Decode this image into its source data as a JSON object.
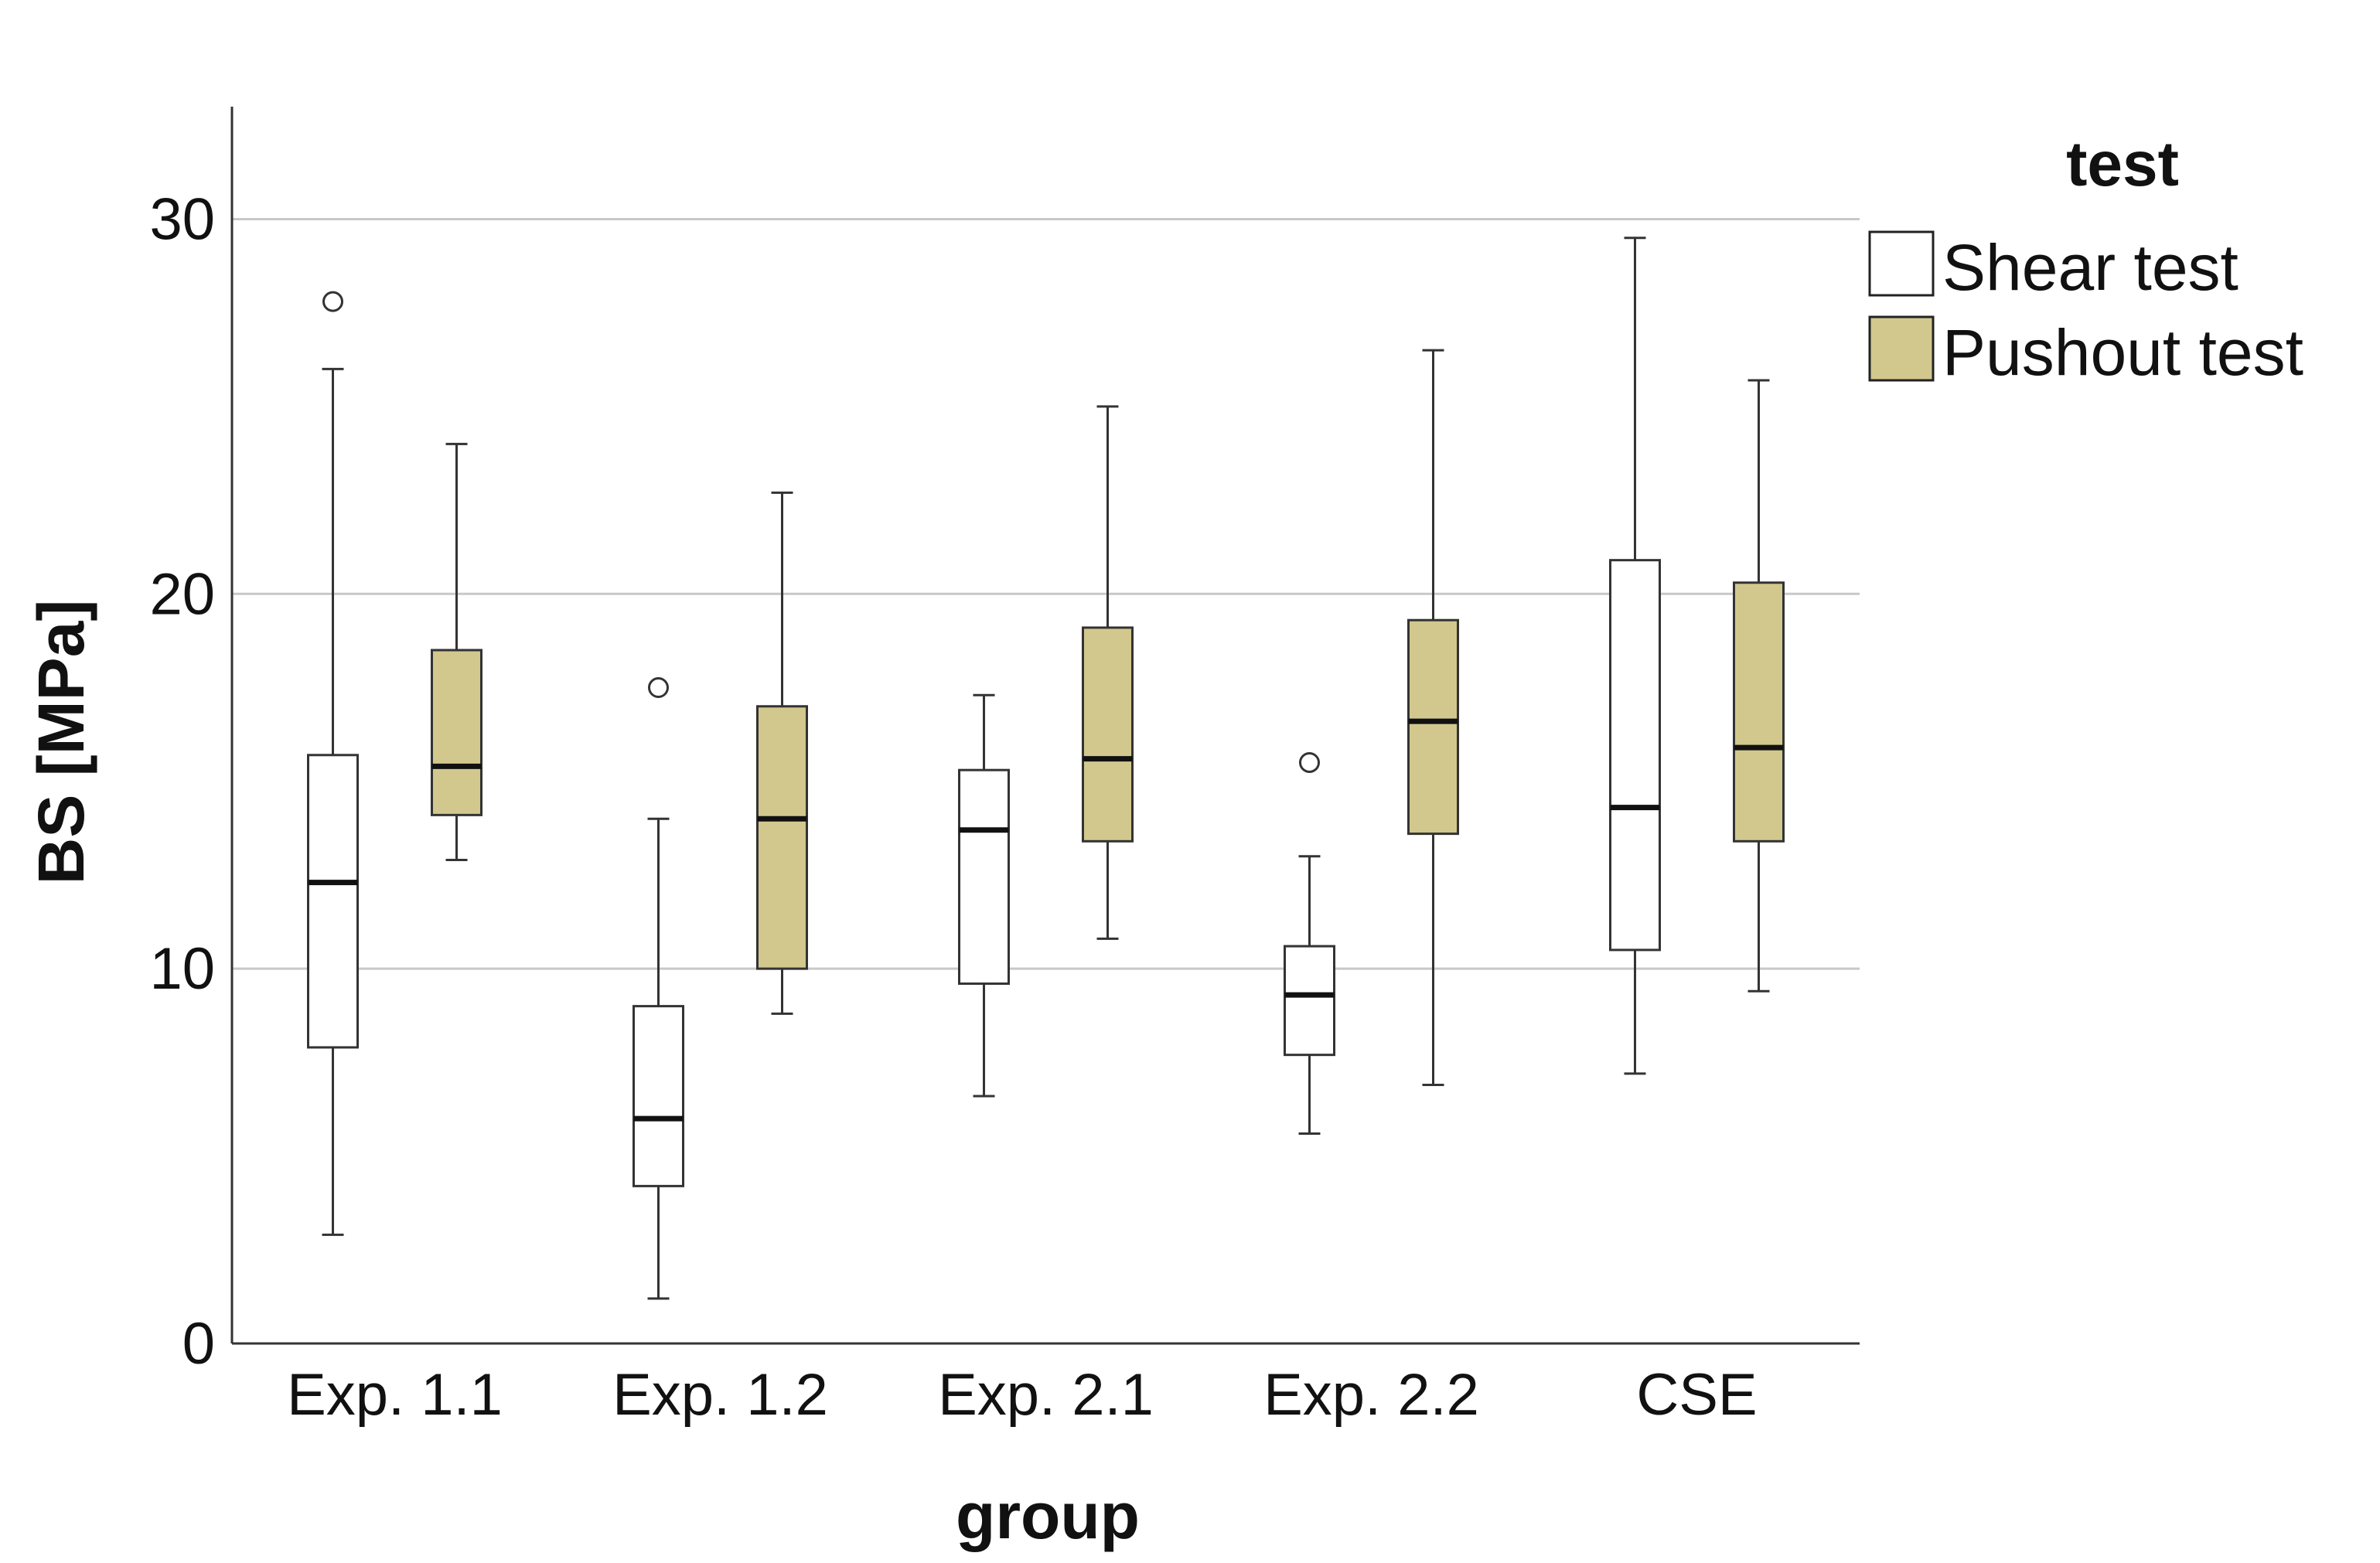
{
  "chart_data": {
    "type": "boxplot",
    "title": "",
    "xlabel": "group",
    "ylabel": "BS [MPa]",
    "ylim": [
      0,
      33
    ],
    "yticks": [
      0,
      10,
      20,
      30
    ],
    "grid": true,
    "legend": {
      "title": "test",
      "position": "top-right",
      "entries": [
        "Shear test",
        "Pushout test"
      ]
    },
    "categories": [
      "Exp. 1.1",
      "Exp. 1.2",
      "Exp. 2.1",
      "Exp. 2.2",
      "CSE"
    ],
    "series": [
      {
        "name": "Shear test",
        "color": "#ffffff",
        "boxes": [
          {
            "min": 2.9,
            "q1": 7.9,
            "median": 12.3,
            "q3": 15.7,
            "max": 26.0,
            "outliers": [
              27.8
            ]
          },
          {
            "min": 1.2,
            "q1": 4.2,
            "median": 6.0,
            "q3": 9.0,
            "max": 14.0,
            "outliers": [
              17.5
            ]
          },
          {
            "min": 6.6,
            "q1": 9.6,
            "median": 13.7,
            "q3": 15.3,
            "max": 17.3,
            "outliers": []
          },
          {
            "min": 5.6,
            "q1": 7.7,
            "median": 9.3,
            "q3": 10.6,
            "max": 13.0,
            "outliers": [
              15.5
            ]
          },
          {
            "min": 7.2,
            "q1": 10.5,
            "median": 14.3,
            "q3": 20.9,
            "max": 29.5,
            "outliers": []
          }
        ]
      },
      {
        "name": "Pushout test",
        "color": "#d2c88e",
        "boxes": [
          {
            "min": 12.9,
            "q1": 14.1,
            "median": 15.4,
            "q3": 18.5,
            "max": 24.0,
            "outliers": []
          },
          {
            "min": 8.8,
            "q1": 10.0,
            "median": 14.0,
            "q3": 17.0,
            "max": 22.7,
            "outliers": []
          },
          {
            "min": 10.8,
            "q1": 13.4,
            "median": 15.6,
            "q3": 19.1,
            "max": 25.0,
            "outliers": []
          },
          {
            "min": 6.9,
            "q1": 13.6,
            "median": 16.6,
            "q3": 19.3,
            "max": 26.5,
            "outliers": []
          },
          {
            "min": 9.4,
            "q1": 13.4,
            "median": 15.9,
            "q3": 20.3,
            "max": 25.7,
            "outliers": []
          }
        ]
      }
    ]
  }
}
